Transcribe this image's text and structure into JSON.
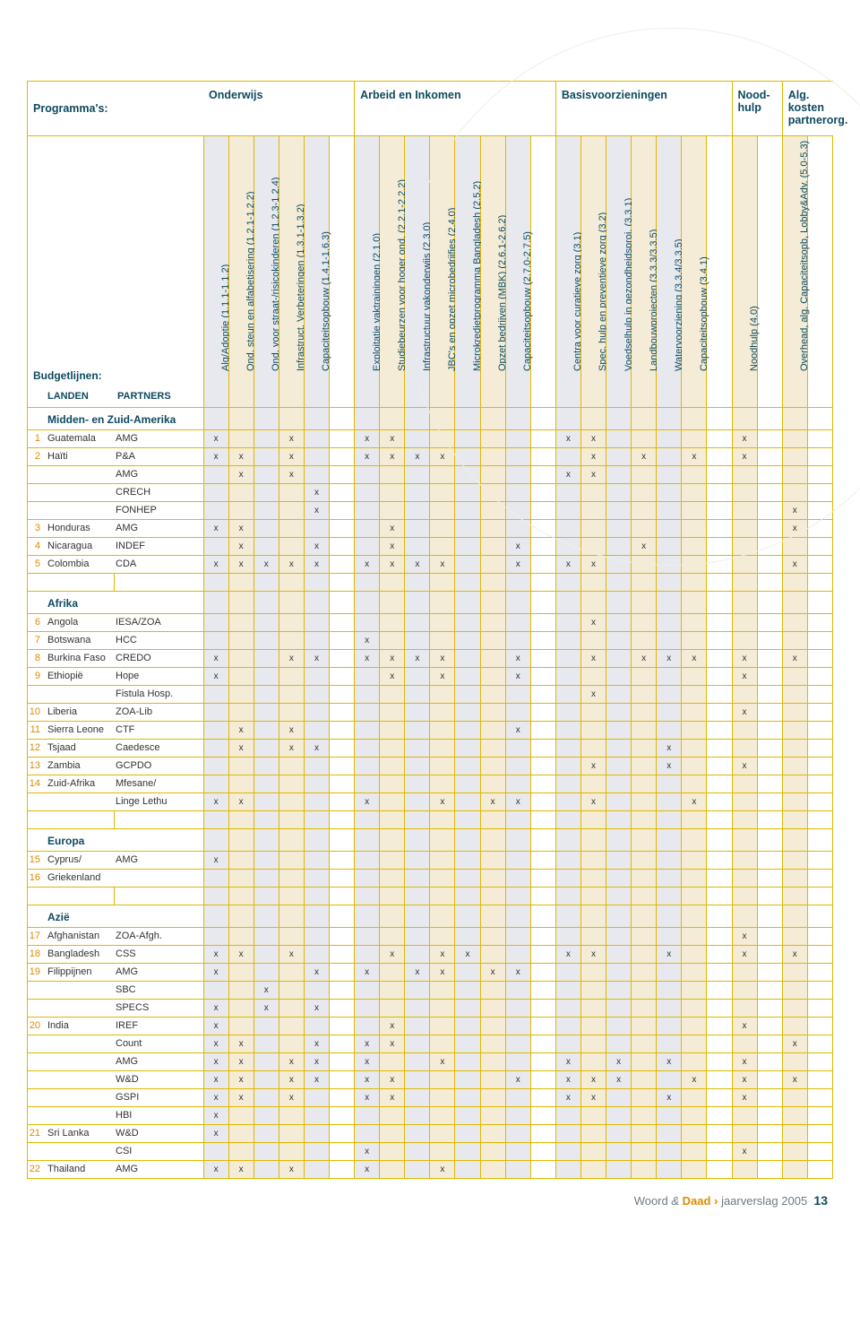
{
  "colors": {
    "gold_border": "#e0b800",
    "orange_text": "#e08a00",
    "navy_text": "#0e4a60",
    "tint_blue": "#e7e9ef",
    "tint_tan": "#f4ecd6"
  },
  "header": {
    "programmas": "Programma's:",
    "budgetlijnen": "Budgetlijnen:",
    "landen": "LANDEN",
    "partners": "PARTNERS"
  },
  "groups": [
    {
      "label": "Onderwijs",
      "cols": 5
    },
    {
      "label": "Arbeid en Inkomen",
      "cols": 7
    },
    {
      "label": "Basisvoorzieningen",
      "cols": 6
    },
    {
      "label": "Nood-\nhulp",
      "cols": 1
    },
    {
      "label": "Alg. kosten\npartnerorg.",
      "cols": 1
    }
  ],
  "columns": [
    {
      "g": 0,
      "label": "Alg/Adoptie (1.1.1-1.1.2)"
    },
    {
      "g": 0,
      "label": "Ond. steun en alfabetisering (1.2.1-1.2.2)"
    },
    {
      "g": 0,
      "label": "Ond. voor straat-/risicokinderen (1.2.3-1.2.4)"
    },
    {
      "g": 0,
      "label": "Infrastruct. Verbeteringen (1.3.1-1.3.2)"
    },
    {
      "g": 0,
      "label": "Capaciteitsopbouw (1.4.1-1.6.3)"
    },
    {
      "g": 1,
      "label": "Exploitatie vaktrainingen (2.1.0)"
    },
    {
      "g": 1,
      "label": "Studiebeurzen voor hoger ond. (2.2.1-2.2.2)"
    },
    {
      "g": 1,
      "label": "Infrastructuur vakonderwijs (2.3.0)"
    },
    {
      "g": 1,
      "label": "JBC's en opzet microbedrijfjes (2.4.0)"
    },
    {
      "g": 1,
      "label": "Microkredietprogramma Bangladesh (2.5.2)"
    },
    {
      "g": 1,
      "label": "Opzet bedrijven (MBK) (2.6.1-2.6.2)"
    },
    {
      "g": 1,
      "label": "Capaciteitsopbouw (2.7.0-2.7.5)"
    },
    {
      "g": 2,
      "label": "Centra voor curatieve zorg (3.1)"
    },
    {
      "g": 2,
      "label": "Spec. hulp en preventieve zorg (3.2)"
    },
    {
      "g": 2,
      "label": "Voedselhulp in gezondheidsproj. (3.3.1)"
    },
    {
      "g": 2,
      "label": "Landbouwprojecten (3.3.3/3.3.5)"
    },
    {
      "g": 2,
      "label": "Watervoorziening (3.3.4/3.3.5)"
    },
    {
      "g": 2,
      "label": "Capaciteitsopbouw (3.4.1)"
    },
    {
      "g": 3,
      "label": "Noodhulp (4.0)"
    },
    {
      "g": 4,
      "label": "Overhead, alg. Capaciteitsopb, Lobby&Adv. (5.0-5.3)"
    }
  ],
  "col_tints": [
    "a",
    "b",
    "a",
    "b",
    "a",
    "a",
    "b",
    "a",
    "b",
    "a",
    "b",
    "a",
    "a",
    "b",
    "a",
    "b",
    "a",
    "b",
    "b",
    "b"
  ],
  "sections": [
    {
      "title": "Midden- en Zuid-Amerika",
      "rows": [
        {
          "n": "1",
          "land": "Guatemala",
          "partner": "AMG",
          "x": [
            1,
            0,
            0,
            1,
            0,
            1,
            1,
            0,
            0,
            0,
            0,
            0,
            1,
            1,
            0,
            0,
            0,
            0,
            1,
            0
          ]
        },
        {
          "n": "2",
          "land": "Haïti",
          "partner": "P&A",
          "x": [
            1,
            1,
            0,
            1,
            0,
            1,
            1,
            1,
            1,
            0,
            0,
            0,
            0,
            1,
            0,
            1,
            0,
            1,
            1,
            0
          ]
        },
        {
          "n": "",
          "land": "",
          "partner": "AMG",
          "x": [
            0,
            1,
            0,
            1,
            0,
            0,
            0,
            0,
            0,
            0,
            0,
            0,
            1,
            1,
            0,
            0,
            0,
            0,
            0,
            0
          ]
        },
        {
          "n": "",
          "land": "",
          "partner": "CRECH",
          "x": [
            0,
            0,
            0,
            0,
            1,
            0,
            0,
            0,
            0,
            0,
            0,
            0,
            0,
            0,
            0,
            0,
            0,
            0,
            0,
            0
          ]
        },
        {
          "n": "",
          "land": "",
          "partner": "FONHEP",
          "x": [
            0,
            0,
            0,
            0,
            1,
            0,
            0,
            0,
            0,
            0,
            0,
            0,
            0,
            0,
            0,
            0,
            0,
            0,
            0,
            1
          ]
        },
        {
          "n": "3",
          "land": "Honduras",
          "partner": "AMG",
          "x": [
            1,
            1,
            0,
            0,
            0,
            0,
            1,
            0,
            0,
            0,
            0,
            0,
            0,
            0,
            0,
            0,
            0,
            0,
            0,
            1
          ]
        },
        {
          "n": "4",
          "land": "Nicaragua",
          "partner": "INDEF",
          "x": [
            0,
            1,
            0,
            0,
            1,
            0,
            1,
            0,
            0,
            0,
            0,
            1,
            0,
            0,
            0,
            1,
            0,
            0,
            0,
            0
          ]
        },
        {
          "n": "5",
          "land": "Colombia",
          "partner": "CDA",
          "x": [
            1,
            1,
            1,
            1,
            1,
            1,
            1,
            1,
            1,
            0,
            0,
            1,
            1,
            1,
            0,
            0,
            0,
            0,
            0,
            1
          ]
        }
      ]
    },
    {
      "title": "Afrika",
      "rows": [
        {
          "n": "6",
          "land": "Angola",
          "partner": "IESA/ZOA",
          "x": [
            0,
            0,
            0,
            0,
            0,
            0,
            0,
            0,
            0,
            0,
            0,
            0,
            0,
            1,
            0,
            0,
            0,
            0,
            0,
            0
          ]
        },
        {
          "n": "7",
          "land": "Botswana",
          "partner": "HCC",
          "x": [
            0,
            0,
            0,
            0,
            0,
            1,
            0,
            0,
            0,
            0,
            0,
            0,
            0,
            0,
            0,
            0,
            0,
            0,
            0,
            0
          ]
        },
        {
          "n": "8",
          "land": "Burkina Faso",
          "partner": "CREDO",
          "x": [
            1,
            0,
            0,
            1,
            1,
            1,
            1,
            1,
            1,
            0,
            0,
            1,
            0,
            1,
            0,
            1,
            1,
            1,
            1,
            1
          ]
        },
        {
          "n": "9",
          "land": "Ethiopië",
          "partner": "Hope",
          "x": [
            1,
            0,
            0,
            0,
            0,
            0,
            1,
            0,
            1,
            0,
            0,
            1,
            0,
            0,
            0,
            0,
            0,
            0,
            1,
            0
          ]
        },
        {
          "n": "",
          "land": "",
          "partner": "Fistula Hosp.",
          "x": [
            0,
            0,
            0,
            0,
            0,
            0,
            0,
            0,
            0,
            0,
            0,
            0,
            0,
            1,
            0,
            0,
            0,
            0,
            0,
            0
          ]
        },
        {
          "n": "10",
          "land": "Liberia",
          "partner": "ZOA-Lib",
          "x": [
            0,
            0,
            0,
            0,
            0,
            0,
            0,
            0,
            0,
            0,
            0,
            0,
            0,
            0,
            0,
            0,
            0,
            0,
            1,
            0
          ]
        },
        {
          "n": "11",
          "land": "Sierra Leone",
          "partner": "CTF",
          "x": [
            0,
            1,
            0,
            1,
            0,
            0,
            0,
            0,
            0,
            0,
            0,
            1,
            0,
            0,
            0,
            0,
            0,
            0,
            0,
            0
          ]
        },
        {
          "n": "12",
          "land": "Tsjaad",
          "partner": "Caedesce",
          "x": [
            0,
            1,
            0,
            1,
            1,
            0,
            0,
            0,
            0,
            0,
            0,
            0,
            0,
            0,
            0,
            0,
            1,
            0,
            0,
            0
          ]
        },
        {
          "n": "13",
          "land": "Zambia",
          "partner": "GCPDO",
          "x": [
            0,
            0,
            0,
            0,
            0,
            0,
            0,
            0,
            0,
            0,
            0,
            0,
            0,
            1,
            0,
            0,
            1,
            0,
            1,
            0
          ]
        },
        {
          "n": "14",
          "land": "Zuid-Afrika",
          "partner": "Mfesane/",
          "x": [
            0,
            0,
            0,
            0,
            0,
            0,
            0,
            0,
            0,
            0,
            0,
            0,
            0,
            0,
            0,
            0,
            0,
            0,
            0,
            0
          ]
        },
        {
          "n": "",
          "land": "",
          "partner": "Linge Lethu",
          "x": [
            1,
            1,
            0,
            0,
            0,
            1,
            0,
            0,
            1,
            0,
            1,
            1,
            0,
            1,
            0,
            0,
            0,
            1,
            0,
            0
          ]
        }
      ]
    },
    {
      "title": "Europa",
      "rows": [
        {
          "n": "15",
          "land": "Cyprus/",
          "partner": "AMG",
          "x": [
            1,
            0,
            0,
            0,
            0,
            0,
            0,
            0,
            0,
            0,
            0,
            0,
            0,
            0,
            0,
            0,
            0,
            0,
            0,
            0
          ]
        },
        {
          "n": "16",
          "land": "Griekenland",
          "partner": "",
          "x": [
            0,
            0,
            0,
            0,
            0,
            0,
            0,
            0,
            0,
            0,
            0,
            0,
            0,
            0,
            0,
            0,
            0,
            0,
            0,
            0
          ]
        }
      ]
    },
    {
      "title": "Azië",
      "rows": [
        {
          "n": "17",
          "land": "Afghanistan",
          "partner": "ZOA-Afgh.",
          "x": [
            0,
            0,
            0,
            0,
            0,
            0,
            0,
            0,
            0,
            0,
            0,
            0,
            0,
            0,
            0,
            0,
            0,
            0,
            1,
            0
          ]
        },
        {
          "n": "18",
          "land": "Bangladesh",
          "partner": "CSS",
          "x": [
            1,
            1,
            0,
            1,
            0,
            0,
            1,
            0,
            1,
            1,
            0,
            0,
            1,
            1,
            0,
            0,
            1,
            0,
            1,
            1
          ]
        },
        {
          "n": "19",
          "land": "Filippijnen",
          "partner": "AMG",
          "x": [
            1,
            0,
            0,
            0,
            1,
            1,
            0,
            1,
            1,
            0,
            1,
            1,
            0,
            0,
            0,
            0,
            0,
            0,
            0,
            0
          ]
        },
        {
          "n": "",
          "land": "",
          "partner": "SBC",
          "x": [
            0,
            0,
            1,
            0,
            0,
            0,
            0,
            0,
            0,
            0,
            0,
            0,
            0,
            0,
            0,
            0,
            0,
            0,
            0,
            0
          ]
        },
        {
          "n": "",
          "land": "",
          "partner": "SPECS",
          "x": [
            1,
            0,
            1,
            0,
            1,
            0,
            0,
            0,
            0,
            0,
            0,
            0,
            0,
            0,
            0,
            0,
            0,
            0,
            0,
            0
          ]
        },
        {
          "n": "20",
          "land": "India",
          "partner": "IREF",
          "x": [
            1,
            0,
            0,
            0,
            0,
            0,
            1,
            0,
            0,
            0,
            0,
            0,
            0,
            0,
            0,
            0,
            0,
            0,
            1,
            0
          ]
        },
        {
          "n": "",
          "land": "",
          "partner": "Count",
          "x": [
            1,
            1,
            0,
            0,
            1,
            1,
            1,
            0,
            0,
            0,
            0,
            0,
            0,
            0,
            0,
            0,
            0,
            0,
            0,
            1
          ]
        },
        {
          "n": "",
          "land": "",
          "partner": "AMG",
          "x": [
            1,
            1,
            0,
            1,
            1,
            1,
            0,
            0,
            1,
            0,
            0,
            0,
            1,
            0,
            1,
            0,
            1,
            0,
            1,
            0
          ]
        },
        {
          "n": "",
          "land": "",
          "partner": "W&D",
          "x": [
            1,
            1,
            0,
            1,
            1,
            1,
            1,
            0,
            0,
            0,
            0,
            1,
            1,
            1,
            1,
            0,
            0,
            1,
            1,
            1
          ]
        },
        {
          "n": "",
          "land": "",
          "partner": "GSPI",
          "x": [
            1,
            1,
            0,
            1,
            0,
            1,
            1,
            0,
            0,
            0,
            0,
            0,
            1,
            1,
            0,
            0,
            1,
            0,
            1,
            0
          ]
        },
        {
          "n": "",
          "land": "",
          "partner": "HBI",
          "x": [
            1,
            0,
            0,
            0,
            0,
            0,
            0,
            0,
            0,
            0,
            0,
            0,
            0,
            0,
            0,
            0,
            0,
            0,
            0,
            0
          ]
        },
        {
          "n": "21",
          "land": "Sri Lanka",
          "partner": "W&D",
          "x": [
            1,
            0,
            0,
            0,
            0,
            0,
            0,
            0,
            0,
            0,
            0,
            0,
            0,
            0,
            0,
            0,
            0,
            0,
            0,
            0
          ]
        },
        {
          "n": "",
          "land": "",
          "partner": "CSI",
          "x": [
            0,
            0,
            0,
            0,
            0,
            1,
            0,
            0,
            0,
            0,
            0,
            0,
            0,
            0,
            0,
            0,
            0,
            0,
            1,
            0
          ]
        },
        {
          "n": "22",
          "land": "Thailand",
          "partner": "AMG",
          "x": [
            1,
            1,
            0,
            1,
            0,
            1,
            0,
            0,
            1,
            0,
            0,
            0,
            0,
            0,
            0,
            0,
            0,
            0,
            0,
            0
          ]
        }
      ]
    }
  ],
  "footer": {
    "woord": "Woord",
    "amp": "&",
    "daad": "Daad",
    "chev": "›",
    "tail": "jaarverslag 2005",
    "page": "13"
  }
}
